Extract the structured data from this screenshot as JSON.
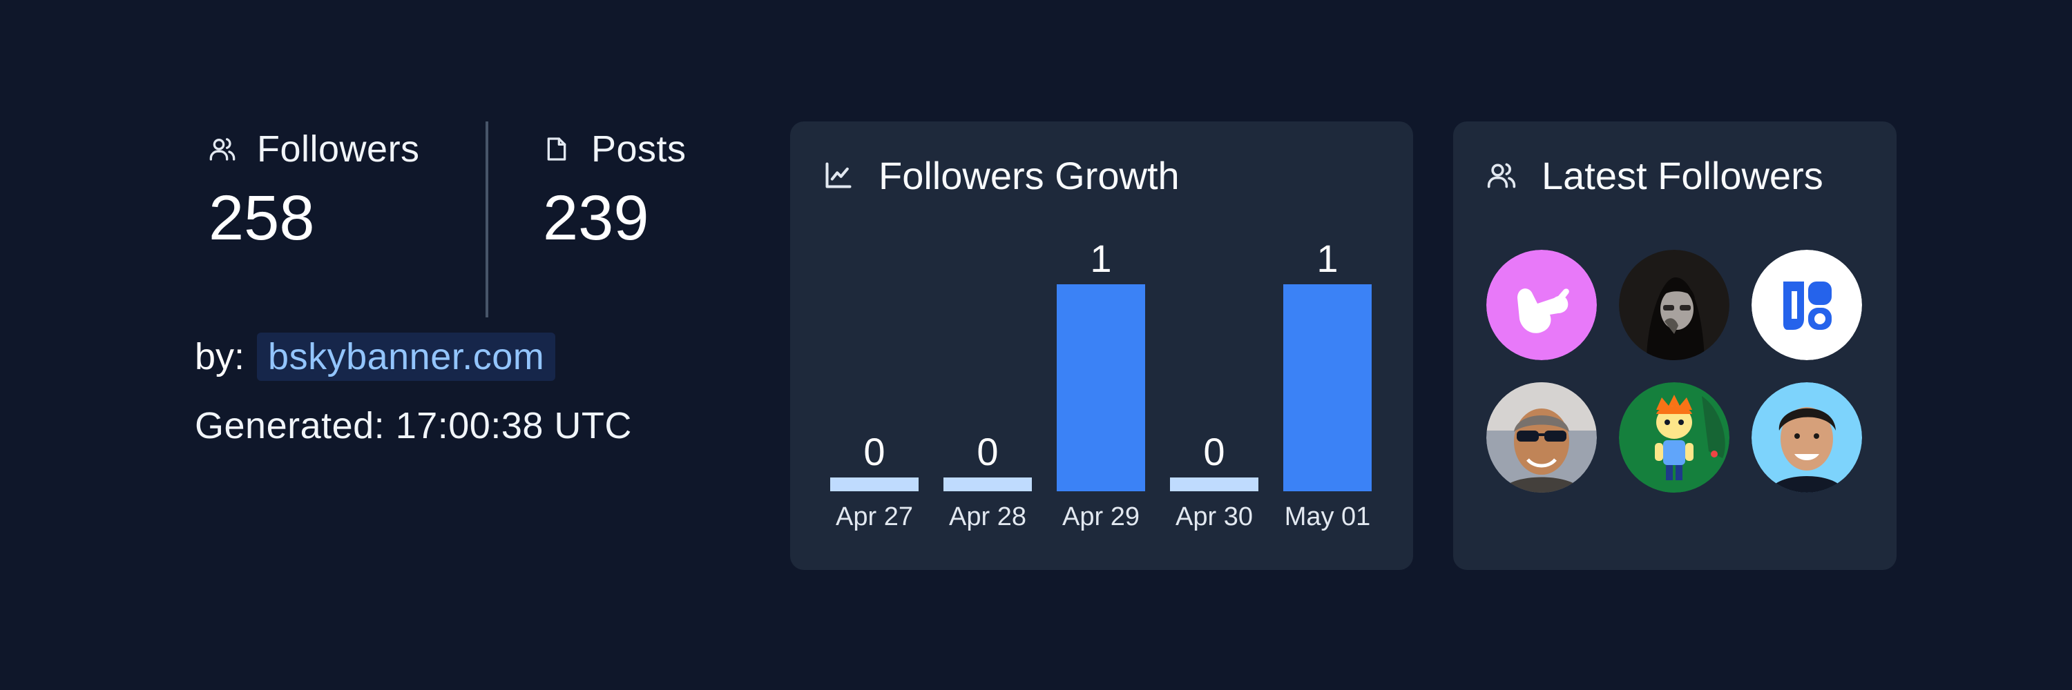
{
  "stats": {
    "followers": {
      "label": "Followers",
      "value": "258",
      "icon": "users-icon"
    },
    "posts": {
      "label": "Posts",
      "value": "239",
      "icon": "document-icon"
    }
  },
  "by": {
    "prefix": "by:",
    "link": "bskybanner.com"
  },
  "generated": "Generated: 17:00:38 UTC",
  "growth_panel": {
    "title": "Followers Growth",
    "icon": "line-chart-icon"
  },
  "latest_panel": {
    "title": "Latest Followers",
    "icon": "users-icon"
  },
  "chart_data": {
    "type": "bar",
    "categories": [
      "Apr 27",
      "Apr 28",
      "Apr 29",
      "Apr 30",
      "May 01"
    ],
    "values": [
      0,
      0,
      1,
      0,
      1
    ],
    "ylim": [
      0,
      1
    ],
    "colors": {
      "bar": "#3b82f6",
      "zero_bar": "#bfdbfe",
      "label": "#ffffff",
      "tick": "#e2e8f0"
    }
  },
  "avatars": [
    {
      "name": "avatar-shaka-hand",
      "bg": "#e879f9"
    },
    {
      "name": "avatar-woman-dark",
      "bg": "#1c1917"
    },
    {
      "name": "avatar-bluesky-logo",
      "bg": "#ffffff"
    },
    {
      "name": "avatar-man-sunglasses",
      "bg": "#9ca3af"
    },
    {
      "name": "avatar-cartoon-character",
      "bg": "#15803d"
    },
    {
      "name": "avatar-young-man",
      "bg": "#7dd3fc"
    }
  ]
}
